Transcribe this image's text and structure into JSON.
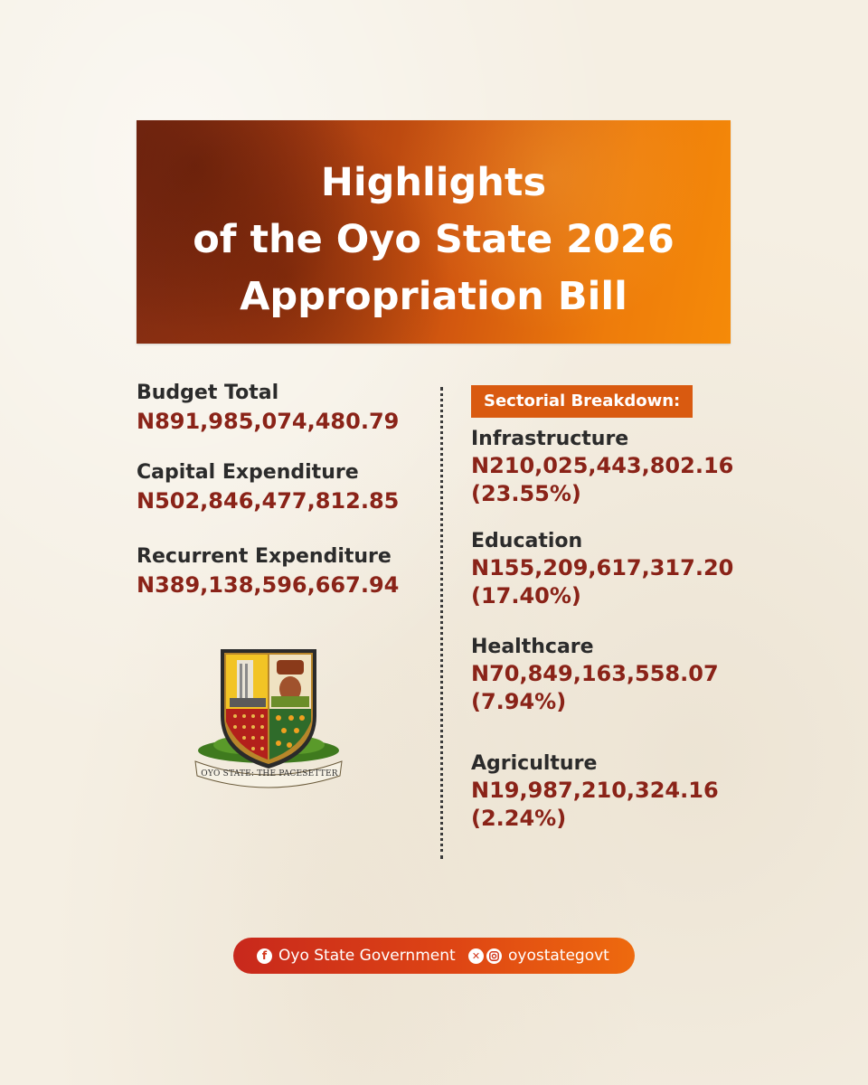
{
  "title": {
    "line1": "Highlights",
    "line2": "of the Oyo State 2026",
    "line3": "Appropriation Bill"
  },
  "summary": [
    {
      "label": "Budget Total",
      "value": "N891,985,074,480.79"
    },
    {
      "label": "Capital Expenditure",
      "value": "N502,846,477,812.85"
    },
    {
      "label": "Recurrent Expenditure",
      "value": "N389,138,596,667.94"
    }
  ],
  "sectorial": {
    "heading": "Sectorial Breakdown:",
    "items": [
      {
        "label": "Infrastructure",
        "value": "N210,025,443,802.16",
        "percent": "(23.55%)"
      },
      {
        "label": "Education",
        "value": "N155,209,617,317.20",
        "percent": "(17.40%)"
      },
      {
        "label": "Healthcare",
        "value": "N70,849,163,558.07",
        "percent": "(7.94%)"
      },
      {
        "label": "Agriculture",
        "value": "N19,987,210,324.16",
        "percent": "(2.24%)"
      }
    ]
  },
  "crest": {
    "motto": "OYO STATE: THE PACESETTER"
  },
  "footer": {
    "facebook_icon": "facebook-icon",
    "facebook_label": "Oyo State Government",
    "x_icon": "x-icon",
    "instagram_icon": "instagram-icon",
    "handle": "oyostategovt"
  },
  "colors": {
    "value_red": "#8a2318",
    "banner_orange": "#ee7c0b",
    "banner_dark": "#7e2a12"
  }
}
